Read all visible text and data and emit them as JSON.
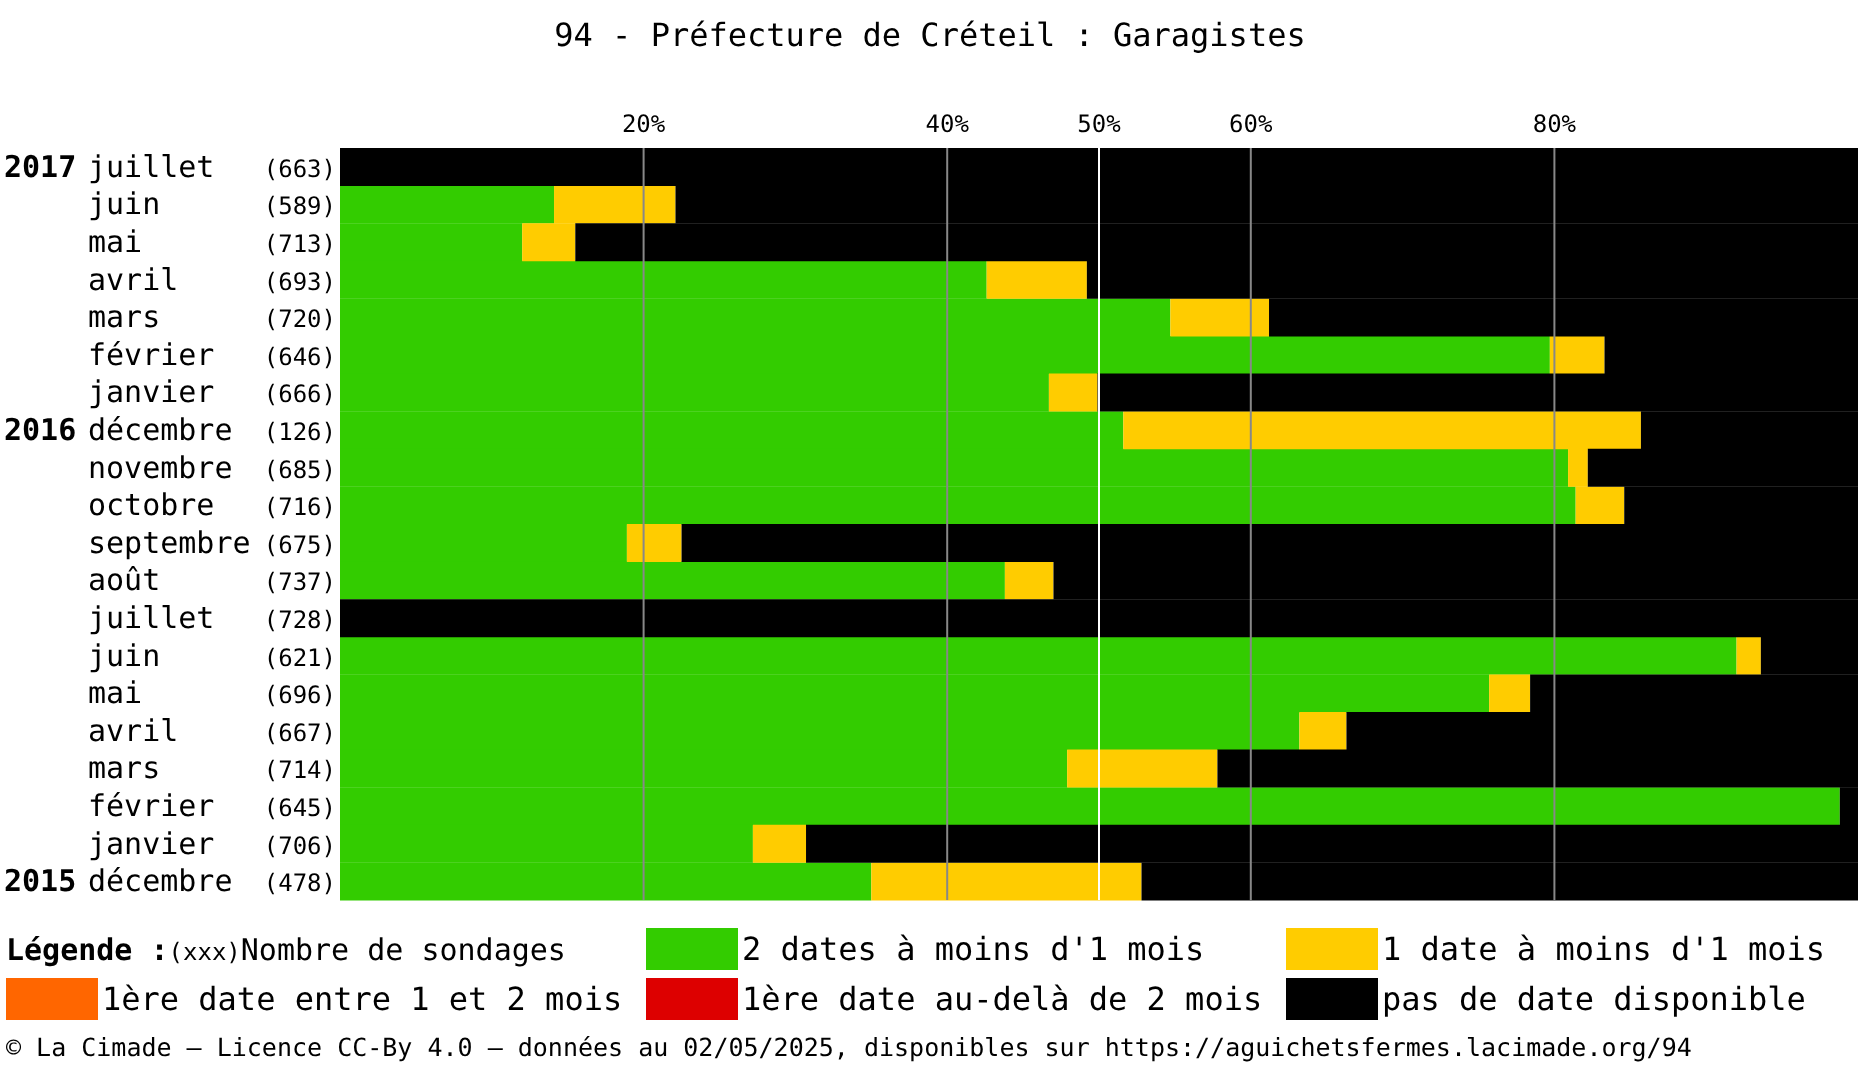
{
  "chart_data": {
    "type": "bar",
    "orientation": "horizontal",
    "stacked": true,
    "title": "94 - Préfecture de Créteil : Garagistes",
    "categories": [
      "2017 juillet (663)",
      "juin (589)",
      "mai (713)",
      "avril (693)",
      "mars (720)",
      "février (646)",
      "janvier (666)",
      "2016 décembre (126)",
      "novembre (685)",
      "octobre (716)",
      "septembre (675)",
      "août (737)",
      "juillet (728)",
      "juin (621)",
      "mai (696)",
      "avril (667)",
      "mars (714)",
      "février (645)",
      "janvier (706)",
      "2015 décembre (478)"
    ],
    "series": [
      {
        "name": "2 dates à moins d'1 mois",
        "color": "#33cc00",
        "values": [
          0,
          14.1,
          12.0,
          42.6,
          54.7,
          79.7,
          46.7,
          51.6,
          80.9,
          81.4,
          18.9,
          43.8,
          0,
          92.0,
          75.7,
          63.2,
          47.9,
          98.8,
          27.2,
          35.0
        ]
      },
      {
        "name": "1 date à moins d'1 mois",
        "color": "#ffcc00",
        "values": [
          0,
          8.0,
          3.5,
          6.6,
          6.5,
          3.6,
          3.2,
          34.1,
          1.3,
          3.2,
          3.6,
          3.2,
          0,
          1.6,
          2.7,
          3.1,
          9.9,
          0,
          3.5,
          17.8
        ]
      },
      {
        "name": "1ère date entre 1 et 2 mois",
        "color": "#ff6600",
        "values": [
          0,
          0,
          0,
          0,
          0,
          0,
          0,
          0,
          0,
          0,
          0,
          0,
          0,
          0,
          0,
          0,
          0,
          0,
          0,
          0
        ]
      },
      {
        "name": "1ère date au-delà de 2 mois",
        "color": "#dd0000",
        "values": [
          0,
          0,
          0,
          0,
          0,
          0,
          0,
          0,
          0,
          0,
          0,
          0,
          0,
          0,
          0,
          0,
          0,
          0,
          0,
          0
        ]
      },
      {
        "name": "pas de date disponible",
        "color": "#000000",
        "values": [
          100,
          77.9,
          84.5,
          50.8,
          38.8,
          16.7,
          50.1,
          14.3,
          17.8,
          15.4,
          77.5,
          53.0,
          100,
          6.4,
          21.6,
          33.7,
          42.2,
          1.2,
          69.3,
          47.2
        ]
      }
    ],
    "xlim": [
      0,
      100
    ],
    "xticks": [
      {
        "value": 20,
        "label": "20%"
      },
      {
        "value": 40,
        "label": "40%"
      },
      {
        "value": 50,
        "label": "50%"
      },
      {
        "value": 60,
        "label": "60%"
      },
      {
        "value": 80,
        "label": "80%"
      }
    ],
    "grid": "x",
    "ref_lines": [
      {
        "axis": "x",
        "value": 50,
        "color": "#ffffff"
      }
    ],
    "legend": "bottom",
    "legend_title": "Légende :",
    "annotations": [
      "(xxx)Nombre de sondages",
      "© La Cimade – Licence CC-By 4.0 – données au 02/05/2025, disponibles sur https://aguichetsfermes.lacimade.org/94"
    ]
  }
}
